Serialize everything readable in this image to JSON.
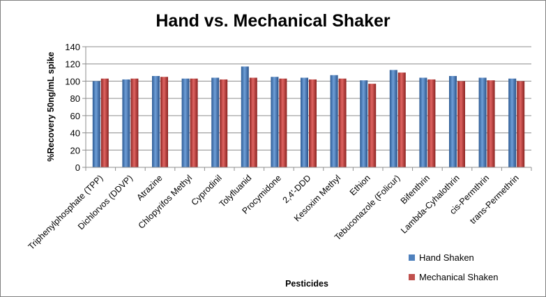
{
  "chart_data": {
    "type": "bar",
    "title": "Hand vs. Mechanical Shaker",
    "xlabel": "Pesticides",
    "ylabel": "%Recovery 50ng/mL spike",
    "ylim": [
      0,
      140
    ],
    "yticks": [
      0,
      20,
      40,
      60,
      80,
      100,
      120,
      140
    ],
    "grid": true,
    "legend_position": "bottom-right",
    "categories": [
      "Triphenylphosphate (TPP)",
      "Dichlorvos (DDVP)",
      "Atrazine",
      "Chlopyrifos Methyl",
      "Cyprodinil",
      "Tolyfluanid",
      "Procymidone",
      "2,4'-DDD",
      "Kesoxim Methyl",
      "Ethion",
      "Tebuconazole (Folicur)",
      "Bifenthrin",
      "Lambda-Cyhalothrin",
      "cis-Permthrin",
      "trans-Permethrin"
    ],
    "series": [
      {
        "name": "Hand Shaken",
        "color": "#4f81bd",
        "values": [
          100,
          102,
          106,
          103,
          104,
          117,
          105,
          104,
          107,
          101,
          113,
          104,
          106,
          104,
          103
        ]
      },
      {
        "name": "Mechanical Shaken",
        "color": "#c0504d",
        "values": [
          103,
          103,
          105,
          103,
          102,
          104,
          103,
          102,
          103,
          97,
          110,
          102,
          100,
          101,
          100
        ]
      }
    ]
  }
}
